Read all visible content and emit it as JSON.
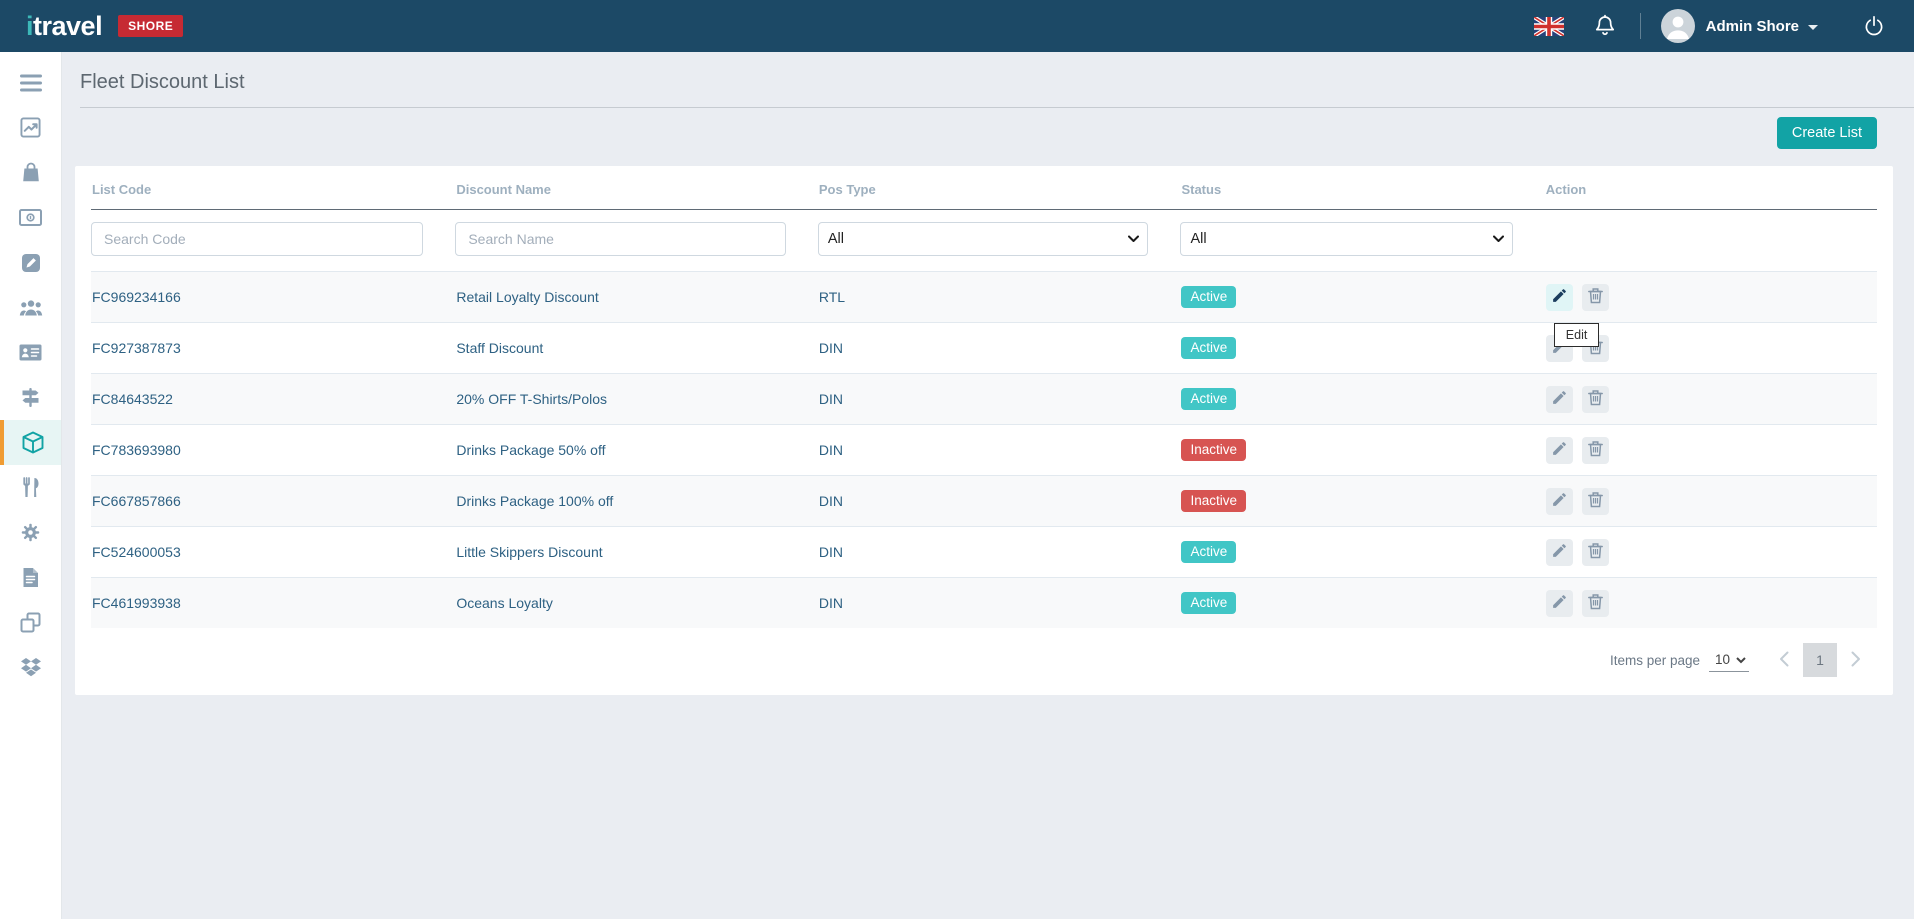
{
  "navbar": {
    "logo_accent": "i",
    "logo_rest": "travel",
    "environment_badge": "SHORE",
    "user_name": "Admin Shore",
    "icons": [
      "uk-flag-icon",
      "bell-icon",
      "avatar",
      "chevron-down-icon",
      "power-icon"
    ]
  },
  "sidebar": {
    "items": [
      {
        "name": "menu-toggle",
        "icon": "bars",
        "active": false
      },
      {
        "name": "dashboard",
        "icon": "chart-line",
        "active": false
      },
      {
        "name": "retail",
        "icon": "shopping-bag",
        "active": false
      },
      {
        "name": "finance",
        "icon": "money-bill",
        "active": false
      },
      {
        "name": "editor",
        "icon": "pencil-square",
        "active": false
      },
      {
        "name": "users",
        "icon": "users",
        "active": false
      },
      {
        "name": "crew",
        "icon": "id-card",
        "active": false
      },
      {
        "name": "excursions",
        "icon": "signpost",
        "active": false
      },
      {
        "name": "packages",
        "icon": "cube",
        "active": true
      },
      {
        "name": "dining",
        "icon": "utensils",
        "active": false
      },
      {
        "name": "settings",
        "icon": "gear",
        "active": false
      },
      {
        "name": "reports",
        "icon": "file",
        "active": false
      },
      {
        "name": "windows",
        "icon": "clone",
        "active": false
      },
      {
        "name": "integrations",
        "icon": "dropbox",
        "active": false
      }
    ]
  },
  "page": {
    "title": "Fleet Discount List",
    "create_button_label": "Create List"
  },
  "table": {
    "columns": [
      "List Code",
      "Discount Name",
      "Pos Type",
      "Status",
      "Action"
    ],
    "filters": {
      "code_placeholder": "Search Code",
      "name_placeholder": "Search Name",
      "pos_type_value": "All",
      "status_value": "All"
    },
    "rows": [
      {
        "code": "FC969234166",
        "name": "Retail Loyalty Discount",
        "pos": "RTL",
        "status": "Active"
      },
      {
        "code": "FC927387873",
        "name": "Staff Discount",
        "pos": "DIN",
        "status": "Active"
      },
      {
        "code": "FC84643522",
        "name": "20% OFF T-Shirts/Polos",
        "pos": "DIN",
        "status": "Active"
      },
      {
        "code": "FC783693980",
        "name": "Drinks Package 50% off",
        "pos": "DIN",
        "status": "Inactive"
      },
      {
        "code": "FC667857866",
        "name": "Drinks Package 100% off",
        "pos": "DIN",
        "status": "Inactive"
      },
      {
        "code": "FC524600053",
        "name": "Little Skippers Discount",
        "pos": "DIN",
        "status": "Active"
      },
      {
        "code": "FC461993938",
        "name": "Oceans Loyalty",
        "pos": "DIN",
        "status": "Active"
      }
    ],
    "edit_tooltip": {
      "text": "Edit",
      "visible_on_row": 0
    }
  },
  "pagination": {
    "items_per_page_label": "Items per page",
    "items_per_page_value": "10",
    "current_page": "1"
  },
  "colors": {
    "navbar_bg": "#1c4966",
    "accent_teal": "#12a3a5",
    "badge_red": "#c62a33",
    "status_active": "#41c6c6",
    "status_inactive": "#d75452",
    "sidebar_active_border": "#f09c33",
    "row_text": "#2e6183"
  }
}
